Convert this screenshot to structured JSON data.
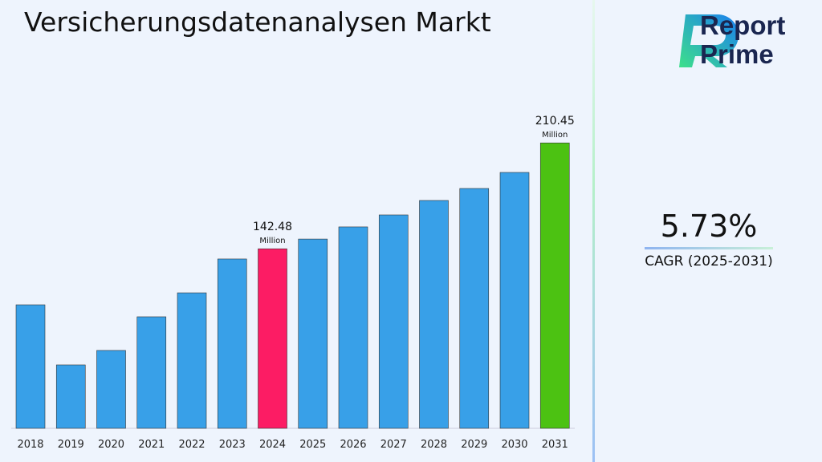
{
  "chart_data": {
    "type": "bar",
    "title": "Versicherungsdatenanalysen Markt",
    "categories": [
      "2018",
      "2019",
      "2020",
      "2021",
      "2022",
      "2023",
      "2024",
      "2025",
      "2026",
      "2027",
      "2028",
      "2029",
      "2030",
      "2031"
    ],
    "values": [
      106.5,
      67.9,
      77.2,
      98.8,
      114.2,
      135.9,
      142.48,
      148.7,
      156.5,
      164.2,
      173.5,
      181.2,
      191.5,
      210.45
    ],
    "colors": {
      "default": "#38a0e8",
      "highlight_2024": "#fc1c64",
      "highlight_2031": "#4cc212"
    },
    "annotations": [
      {
        "category": "2024",
        "value": "142.48",
        "unit": "Million"
      },
      {
        "category": "2031",
        "value": "210.45",
        "unit": "Million"
      }
    ],
    "grid": false
  },
  "brand": {
    "name_line1": "Report",
    "name_line2": "Prime"
  },
  "cagr": {
    "value": "5.73%",
    "label": "CAGR (2025-2031)"
  }
}
